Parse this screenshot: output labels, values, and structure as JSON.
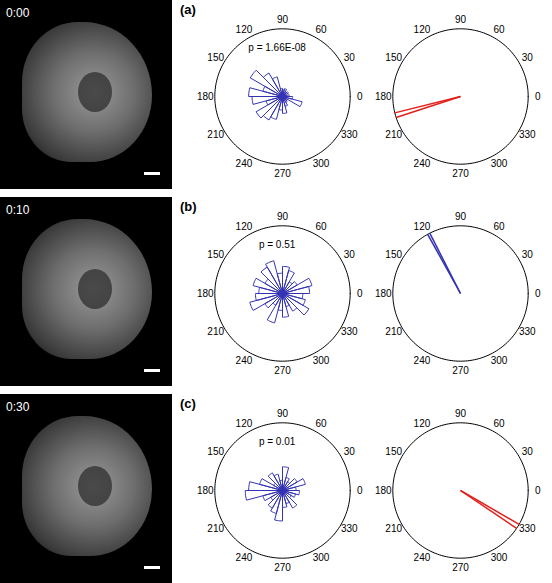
{
  "images": [
    {
      "label": "0:00"
    },
    {
      "label": "0:10"
    },
    {
      "label": "0:30"
    }
  ],
  "chart_data": [
    {
      "type": "rose",
      "panel": "(a)",
      "annotation": "p = 1.66E-08",
      "color": "#3333b3",
      "rlim": [
        0,
        1
      ],
      "angle_ticks": [
        0,
        30,
        60,
        90,
        120,
        150,
        180,
        210,
        240,
        270,
        300,
        330
      ],
      "bins": [
        0,
        15,
        30,
        45,
        60,
        75,
        90,
        105,
        120,
        135,
        150,
        165,
        180,
        195,
        210,
        225,
        240,
        255,
        270,
        285,
        300,
        315,
        330,
        345,
        360
      ],
      "values": [
        0.1,
        0.05,
        0.1,
        0.08,
        0.12,
        0.1,
        0.12,
        0.3,
        0.4,
        0.55,
        0.3,
        0.5,
        0.45,
        0.25,
        0.45,
        0.4,
        0.35,
        0.2,
        0.25,
        0.15,
        0.1,
        0.08,
        0.3,
        0.15
      ]
    },
    {
      "type": "vector",
      "color": "#e3201b",
      "rlim": [
        0,
        1
      ],
      "angle_ticks": [
        0,
        30,
        60,
        90,
        120,
        150,
        180,
        210,
        240,
        270,
        300,
        330
      ],
      "angles": [
        194,
        198
      ],
      "values": [
        1,
        1
      ]
    },
    {
      "type": "rose",
      "panel": "(b)",
      "annotation": "p = 0.51",
      "color": "#3333b3",
      "rlim": [
        0,
        1
      ],
      "angle_ticks": [
        0,
        30,
        60,
        90,
        120,
        150,
        180,
        210,
        240,
        270,
        300,
        330
      ],
      "bins": [
        0,
        15,
        30,
        45,
        60,
        75,
        90,
        105,
        120,
        135,
        150,
        165,
        180,
        195,
        210,
        225,
        240,
        255,
        270,
        285,
        300,
        315,
        330,
        345,
        360
      ],
      "values": [
        0.4,
        0.45,
        0.25,
        0.2,
        0.35,
        0.4,
        0.3,
        0.5,
        0.45,
        0.3,
        0.45,
        0.35,
        0.4,
        0.5,
        0.3,
        0.2,
        0.45,
        0.25,
        0.35,
        0.2,
        0.3,
        0.45,
        0.35,
        0.3
      ]
    },
    {
      "type": "vector",
      "color": "#3333b3",
      "rlim": [
        0,
        1
      ],
      "angle_ticks": [
        0,
        30,
        60,
        90,
        120,
        150,
        180,
        210,
        240,
        270,
        300,
        330
      ],
      "angles": [
        117,
        119
      ],
      "values": [
        1,
        1
      ]
    },
    {
      "type": "rose",
      "panel": "(c)",
      "annotation": "p = 0.01",
      "color": "#3333b3",
      "rlim": [
        0,
        1
      ],
      "angle_ticks": [
        0,
        30,
        60,
        90,
        120,
        150,
        180,
        210,
        240,
        270,
        300,
        330
      ],
      "bins": [
        0,
        15,
        30,
        45,
        60,
        75,
        90,
        105,
        120,
        135,
        150,
        165,
        180,
        195,
        210,
        225,
        240,
        255,
        270,
        285,
        300,
        315,
        330,
        345,
        360
      ],
      "values": [
        0.2,
        0.35,
        0.25,
        0.15,
        0.2,
        0.35,
        0.15,
        0.25,
        0.3,
        0.15,
        0.35,
        0.5,
        0.55,
        0.3,
        0.2,
        0.3,
        0.35,
        0.45,
        0.25,
        0.2,
        0.3,
        0.15,
        0.2,
        0.25
      ]
    },
    {
      "type": "vector",
      "color": "#e3201b",
      "rlim": [
        0,
        1
      ],
      "angle_ticks": [
        0,
        30,
        60,
        90,
        120,
        150,
        180,
        210,
        240,
        270,
        300,
        330
      ],
      "angles": [
        326,
        330
      ],
      "values": [
        1,
        1
      ]
    }
  ]
}
